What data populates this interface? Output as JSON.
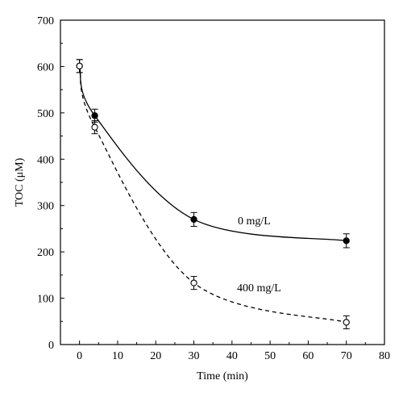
{
  "chart_data": {
    "type": "line",
    "title": "",
    "xlabel": "Time (min)",
    "ylabel": "TOC (μM)",
    "xlim": [
      -5,
      80
    ],
    "ylim": [
      0,
      700
    ],
    "xticks": [
      0,
      10,
      20,
      30,
      40,
      50,
      60,
      70,
      80
    ],
    "yticks": [
      0,
      100,
      200,
      300,
      400,
      500,
      600,
      700
    ],
    "grid": false,
    "legend": "none; series labeled inline",
    "series": [
      {
        "name": "0 mg/L",
        "marker": "filled-circle",
        "line": "solid",
        "color": "#000000",
        "points": [
          {
            "x": 0,
            "y": 601,
            "err": 14
          },
          {
            "x": 4,
            "y": 494,
            "err": 14
          },
          {
            "x": 30,
            "y": 270,
            "err": 15
          },
          {
            "x": 70,
            "y": 224,
            "err": 15
          }
        ]
      },
      {
        "name": "400 mg/L",
        "marker": "open-circle",
        "line": "dashed",
        "color": "#000000",
        "points": [
          {
            "x": 0,
            "y": 601,
            "err": 14
          },
          {
            "x": 4,
            "y": 469,
            "err": 14
          },
          {
            "x": 30,
            "y": 133,
            "err": 14
          },
          {
            "x": 70,
            "y": 48,
            "err": 14
          }
        ]
      }
    ]
  }
}
